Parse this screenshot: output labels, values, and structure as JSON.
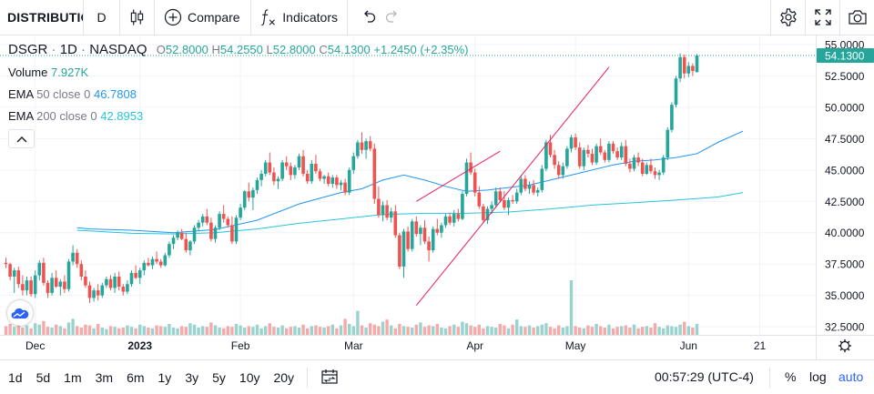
{
  "toolbar": {
    "symbol": "DISTRIBUTION",
    "interval": "D",
    "compare_label": "Compare",
    "indicators_label": "Indicators",
    "icons": [
      "candles-icon",
      "plus-circle-icon",
      "fx-icon",
      "undo-icon",
      "redo-icon",
      "settings-icon",
      "fullscreen-icon",
      "camera-icon"
    ]
  },
  "legend": {
    "symbol": "DSGR",
    "interval": "1D",
    "exchange": "NASDAQ",
    "o_label": "O",
    "o": "52.8000",
    "h_label": "H",
    "h": "54.2550",
    "l_label": "L",
    "l": "52.8000",
    "c_label": "C",
    "c": "54.1300",
    "change": "+1.2450 (+2.35%)",
    "volume_label": "Volume",
    "volume": "7.927K",
    "ema50_label": "EMA",
    "ema50_params": "50 close 0",
    "ema50": "46.7808",
    "ema200_label": "EMA",
    "ema200_params": "200 close 0",
    "ema200": "42.8953"
  },
  "colors": {
    "up": "#26a69a",
    "down": "#ef5350",
    "up_vol": "#9ad3cd",
    "down_vol": "#f3aaa8",
    "ema50": "#2196f3",
    "ema200": "#26c6da",
    "trend": "#e91e63",
    "grid": "#f0f3fa",
    "accent": "#2962ff"
  },
  "chart_data": {
    "type": "candlestick",
    "y_ticks": [
      "55.0000",
      "52.5000",
      "50.0000",
      "47.5000",
      "45.0000",
      "42.5000",
      "40.0000",
      "37.5000",
      "35.0000",
      "32.5000"
    ],
    "ylim": [
      32.0,
      55.8
    ],
    "last_price": "54.1300",
    "x_ticks": [
      {
        "label": "Dec",
        "i": 7,
        "bold": false
      },
      {
        "label": "2023",
        "i": 32,
        "bold": true
      },
      {
        "label": "Feb",
        "i": 56,
        "bold": false
      },
      {
        "label": "Mar",
        "i": 83,
        "bold": false
      },
      {
        "label": "Apr",
        "i": 112,
        "bold": false
      },
      {
        "label": "May",
        "i": 136,
        "bold": false
      },
      {
        "label": "Jun",
        "i": 163,
        "bold": false
      },
      {
        "label": "21",
        "i": 180,
        "bold": false
      }
    ],
    "candles": [
      [
        37.6,
        38.0,
        37.2,
        37.5
      ],
      [
        37.5,
        37.6,
        36.2,
        36.5
      ],
      [
        36.5,
        37.2,
        35.2,
        37.0
      ],
      [
        37.0,
        37.3,
        35.6,
        35.9
      ],
      [
        35.9,
        36.6,
        35.0,
        35.4
      ],
      [
        35.4,
        36.5,
        35.0,
        36.2
      ],
      [
        36.2,
        36.5,
        34.9,
        35.1
      ],
      [
        35.1,
        37.0,
        34.8,
        36.6
      ],
      [
        36.6,
        37.8,
        36.2,
        37.6
      ],
      [
        37.6,
        38.0,
        35.8,
        36.0
      ],
      [
        36.0,
        36.2,
        34.8,
        35.2
      ],
      [
        35.2,
        36.8,
        35.0,
        36.4
      ],
      [
        36.4,
        37.0,
        35.6,
        35.7
      ],
      [
        35.7,
        36.3,
        35.0,
        36.1
      ],
      [
        36.1,
        36.6,
        35.2,
        35.5
      ],
      [
        35.5,
        37.9,
        35.3,
        37.7
      ],
      [
        37.7,
        39.0,
        37.4,
        38.4
      ],
      [
        38.4,
        38.7,
        37.2,
        37.5
      ],
      [
        37.5,
        37.8,
        36.2,
        36.5
      ],
      [
        36.5,
        37.0,
        35.6,
        35.8
      ],
      [
        35.8,
        36.1,
        34.4,
        34.8
      ],
      [
        34.8,
        35.6,
        34.5,
        35.4
      ],
      [
        35.4,
        35.9,
        34.6,
        35.0
      ],
      [
        35.0,
        36.0,
        34.8,
        35.8
      ],
      [
        35.8,
        36.5,
        35.6,
        36.3
      ],
      [
        36.3,
        36.6,
        35.4,
        35.6
      ],
      [
        35.6,
        36.8,
        35.2,
        36.5
      ],
      [
        36.5,
        36.9,
        35.4,
        35.7
      ],
      [
        35.7,
        35.9,
        35.0,
        35.3
      ],
      [
        35.3,
        36.2,
        35.1,
        35.9
      ],
      [
        35.9,
        37.0,
        35.7,
        36.8
      ],
      [
        36.8,
        37.4,
        36.3,
        36.4
      ],
      [
        36.4,
        37.2,
        35.9,
        37.0
      ],
      [
        37.0,
        37.8,
        36.6,
        37.6
      ],
      [
        37.6,
        38.0,
        37.3,
        37.4
      ],
      [
        37.4,
        38.1,
        37.1,
        37.9
      ],
      [
        37.9,
        38.5,
        37.5,
        37.7
      ],
      [
        37.7,
        37.9,
        37.2,
        37.4
      ],
      [
        37.4,
        38.4,
        37.3,
        38.2
      ],
      [
        38.2,
        39.3,
        38.0,
        39.1
      ],
      [
        39.1,
        39.8,
        38.7,
        39.6
      ],
      [
        39.6,
        40.2,
        39.4,
        40.0
      ],
      [
        40.0,
        40.3,
        39.4,
        39.5
      ],
      [
        39.5,
        40.0,
        38.4,
        38.6
      ],
      [
        38.6,
        39.4,
        38.2,
        39.3
      ],
      [
        39.3,
        40.6,
        39.1,
        40.4
      ],
      [
        40.4,
        41.0,
        40.1,
        40.8
      ],
      [
        40.8,
        41.5,
        40.5,
        41.3
      ],
      [
        41.3,
        41.9,
        40.6,
        40.8
      ],
      [
        40.8,
        41.2,
        39.3,
        39.5
      ],
      [
        39.5,
        40.6,
        39.2,
        40.4
      ],
      [
        40.4,
        41.7,
        40.2,
        41.5
      ],
      [
        41.5,
        42.2,
        40.8,
        41.1
      ],
      [
        41.1,
        41.3,
        40.4,
        40.6
      ],
      [
        40.6,
        41.3,
        39.1,
        39.3
      ],
      [
        39.3,
        41.4,
        39.1,
        41.2
      ],
      [
        41.2,
        42.3,
        41.0,
        42.0
      ],
      [
        42.0,
        43.4,
        41.8,
        43.3
      ],
      [
        43.3,
        44.0,
        42.5,
        42.8
      ],
      [
        42.8,
        43.6,
        41.8,
        43.4
      ],
      [
        43.4,
        44.4,
        43.1,
        44.2
      ],
      [
        44.2,
        45.0,
        43.7,
        44.7
      ],
      [
        44.7,
        45.8,
        44.5,
        45.6
      ],
      [
        45.6,
        46.4,
        44.6,
        44.8
      ],
      [
        44.8,
        45.2,
        43.8,
        44.1
      ],
      [
        44.1,
        44.5,
        43.5,
        44.3
      ],
      [
        44.3,
        45.8,
        44.1,
        45.6
      ],
      [
        45.6,
        46.1,
        45.0,
        45.3
      ],
      [
        45.3,
        45.6,
        44.2,
        44.6
      ],
      [
        44.6,
        45.4,
        44.3,
        45.2
      ],
      [
        45.2,
        46.3,
        45.0,
        46.1
      ],
      [
        46.1,
        46.6,
        44.5,
        44.7
      ],
      [
        44.7,
        45.0,
        43.9,
        44.1
      ],
      [
        44.1,
        45.8,
        43.9,
        45.5
      ],
      [
        45.5,
        46.2,
        44.7,
        44.9
      ],
      [
        44.9,
        45.1,
        44.1,
        44.3
      ],
      [
        44.3,
        44.6,
        43.9,
        44.5
      ],
      [
        44.5,
        44.8,
        43.7,
        43.9
      ],
      [
        43.9,
        44.6,
        43.6,
        44.4
      ],
      [
        44.4,
        44.6,
        43.5,
        43.8
      ],
      [
        43.8,
        44.2,
        43.4,
        44.0
      ],
      [
        44.0,
        44.3,
        43.0,
        43.2
      ],
      [
        43.2,
        45.2,
        43.0,
        45.0
      ],
      [
        45.0,
        46.4,
        44.7,
        46.1
      ],
      [
        46.1,
        47.4,
        45.9,
        47.2
      ],
      [
        47.2,
        48.0,
        46.3,
        46.6
      ],
      [
        46.6,
        47.5,
        45.9,
        47.3
      ],
      [
        47.3,
        47.7,
        46.5,
        46.7
      ],
      [
        46.7,
        47.1,
        42.3,
        42.7
      ],
      [
        42.7,
        43.7,
        41.2,
        41.4
      ],
      [
        41.4,
        42.5,
        40.9,
        42.2
      ],
      [
        42.2,
        42.6,
        41.0,
        41.2
      ],
      [
        41.2,
        42.0,
        40.8,
        41.7
      ],
      [
        41.7,
        42.2,
        39.6,
        39.8
      ],
      [
        39.8,
        40.0,
        37.1,
        37.3
      ],
      [
        37.3,
        40.3,
        36.4,
        40.1
      ],
      [
        40.1,
        40.5,
        38.5,
        38.7
      ],
      [
        38.7,
        41.1,
        38.5,
        40.9
      ],
      [
        40.9,
        41.3,
        39.7,
        39.9
      ],
      [
        39.9,
        40.6,
        39.0,
        40.4
      ],
      [
        40.4,
        41.0,
        39.1,
        39.3
      ],
      [
        39.3,
        39.7,
        37.7,
        38.6
      ],
      [
        38.6,
        40.5,
        38.4,
        40.3
      ],
      [
        40.3,
        41.1,
        39.8,
        40.0
      ],
      [
        40.0,
        40.8,
        39.6,
        40.6
      ],
      [
        40.6,
        41.5,
        40.4,
        41.3
      ],
      [
        41.3,
        41.6,
        40.6,
        40.8
      ],
      [
        40.8,
        41.8,
        40.5,
        41.5
      ],
      [
        41.5,
        41.9,
        40.9,
        41.1
      ],
      [
        41.1,
        43.3,
        41.0,
        43.1
      ],
      [
        43.1,
        45.9,
        42.9,
        45.6
      ],
      [
        45.6,
        46.4,
        44.6,
        44.8
      ],
      [
        44.8,
        45.1,
        42.9,
        43.2
      ],
      [
        43.2,
        43.7,
        41.9,
        42.1
      ],
      [
        42.1,
        42.3,
        40.8,
        41.0
      ],
      [
        41.0,
        42.1,
        40.7,
        41.9
      ],
      [
        41.9,
        42.5,
        41.5,
        42.2
      ],
      [
        42.2,
        43.6,
        42.0,
        43.3
      ],
      [
        43.3,
        43.6,
        42.4,
        42.6
      ],
      [
        42.6,
        43.3,
        41.8,
        42.0
      ],
      [
        42.0,
        42.8,
        41.4,
        42.6
      ],
      [
        42.6,
        43.0,
        42.3,
        42.5
      ],
      [
        42.5,
        43.5,
        42.3,
        43.2
      ],
      [
        43.2,
        44.6,
        43.0,
        44.3
      ],
      [
        44.3,
        44.6,
        43.3,
        43.5
      ],
      [
        43.5,
        44.1,
        43.1,
        43.8
      ],
      [
        43.8,
        44.2,
        43.0,
        43.2
      ],
      [
        43.2,
        43.6,
        42.9,
        43.4
      ],
      [
        43.4,
        45.4,
        43.2,
        45.1
      ],
      [
        45.1,
        47.4,
        44.9,
        47.2
      ],
      [
        47.2,
        47.8,
        46.0,
        46.2
      ],
      [
        46.2,
        46.6,
        45.1,
        45.4
      ],
      [
        45.4,
        45.7,
        44.3,
        44.6
      ],
      [
        44.6,
        45.6,
        44.3,
        45.3
      ],
      [
        45.3,
        46.9,
        45.1,
        46.7
      ],
      [
        46.7,
        47.8,
        46.4,
        47.6
      ],
      [
        47.6,
        47.9,
        46.6,
        46.8
      ],
      [
        46.8,
        47.2,
        45.1,
        45.3
      ],
      [
        45.3,
        46.8,
        45.0,
        46.6
      ],
      [
        46.6,
        47.0,
        46.0,
        46.3
      ],
      [
        46.3,
        46.7,
        45.4,
        45.6
      ],
      [
        45.6,
        47.1,
        45.4,
        46.9
      ],
      [
        46.9,
        47.5,
        46.2,
        46.4
      ],
      [
        46.4,
        46.6,
        45.6,
        45.8
      ],
      [
        45.8,
        47.3,
        45.6,
        47.1
      ],
      [
        47.1,
        47.3,
        46.3,
        46.5
      ],
      [
        46.5,
        46.8,
        45.8,
        46.0
      ],
      [
        46.0,
        47.2,
        45.8,
        46.9
      ],
      [
        46.9,
        47.4,
        45.3,
        45.5
      ],
      [
        45.5,
        45.9,
        44.8,
        45.1
      ],
      [
        45.1,
        46.2,
        44.9,
        46.0
      ],
      [
        46.0,
        46.4,
        45.3,
        45.6
      ],
      [
        45.6,
        45.9,
        44.5,
        44.7
      ],
      [
        44.7,
        45.6,
        44.6,
        45.4
      ],
      [
        45.4,
        45.9,
        44.7,
        44.9
      ],
      [
        44.9,
        45.2,
        44.3,
        44.6
      ],
      [
        44.6,
        45.0,
        44.2,
        44.8
      ],
      [
        44.8,
        46.2,
        44.6,
        46.0
      ],
      [
        46.0,
        48.4,
        45.8,
        48.2
      ],
      [
        48.2,
        50.4,
        48.0,
        50.2
      ],
      [
        50.2,
        52.5,
        50.0,
        52.3
      ],
      [
        52.3,
        54.3,
        52.0,
        54.0
      ],
      [
        54.0,
        54.2,
        52.3,
        52.7
      ],
      [
        52.7,
        53.6,
        52.4,
        53.3
      ],
      [
        53.3,
        53.5,
        52.5,
        52.9
      ],
      [
        52.8,
        54.255,
        52.8,
        54.13
      ]
    ],
    "volume_pct": [
      12,
      15,
      11,
      17,
      10,
      13,
      9,
      16,
      14,
      19,
      11,
      10,
      14,
      12,
      9,
      17,
      22,
      12,
      10,
      14,
      13,
      9,
      15,
      10,
      8,
      12,
      11,
      9,
      10,
      13,
      11,
      9,
      14,
      12,
      10,
      9,
      13,
      12,
      11,
      15,
      10,
      9,
      12,
      11,
      16,
      14,
      10,
      12,
      11,
      17,
      13,
      10,
      9,
      12,
      11,
      15,
      13,
      10,
      12,
      11,
      14,
      9,
      12,
      16,
      11,
      10,
      13,
      9,
      11,
      12,
      10,
      14,
      9,
      12,
      13,
      11,
      10,
      12,
      14,
      9,
      13,
      22,
      15,
      12,
      33,
      13,
      10,
      16,
      14,
      12,
      18,
      21,
      13,
      9,
      15,
      12,
      11,
      10,
      14,
      17,
      11,
      13,
      12,
      15,
      10,
      9,
      12,
      14,
      11,
      18,
      16,
      13,
      11,
      14,
      9,
      12,
      11,
      10,
      15,
      13,
      9,
      14,
      21,
      12,
      11,
      13,
      10,
      12,
      14,
      16,
      11,
      9,
      13,
      10,
      12,
      75,
      12,
      10,
      9,
      13,
      11,
      15,
      12,
      10,
      14,
      9,
      11,
      12,
      13,
      10,
      14,
      9,
      11,
      12,
      10,
      16,
      11,
      9,
      13,
      12,
      11,
      14,
      18,
      12,
      10,
      15,
      11,
      9,
      12,
      10,
      11,
      14
    ],
    "ema50": [
      [
        17,
        40.4
      ],
      [
        20,
        40.3
      ],
      [
        30,
        40.2
      ],
      [
        40,
        40.0
      ],
      [
        50,
        40.25
      ],
      [
        60,
        41.0
      ],
      [
        70,
        42.3
      ],
      [
        80,
        43.2
      ],
      [
        85,
        43.5
      ],
      [
        90,
        44.2
      ],
      [
        95,
        44.6
      ],
      [
        100,
        44.2
      ],
      [
        105,
        43.7
      ],
      [
        110,
        43.3
      ],
      [
        115,
        43.4
      ],
      [
        120,
        43.6
      ],
      [
        125,
        43.8
      ],
      [
        130,
        44.2
      ],
      [
        135,
        44.6
      ],
      [
        140,
        45.0
      ],
      [
        145,
        45.4
      ],
      [
        150,
        45.7
      ],
      [
        155,
        45.8
      ],
      [
        160,
        46.0
      ],
      [
        165,
        46.3
      ],
      [
        170,
        47.2
      ],
      [
        176,
        48.1
      ]
    ],
    "ema200": [
      [
        17,
        40.2
      ],
      [
        30,
        39.95
      ],
      [
        40,
        39.9
      ],
      [
        50,
        40.0
      ],
      [
        60,
        40.3
      ],
      [
        70,
        40.75
      ],
      [
        80,
        41.1
      ],
      [
        90,
        41.45
      ],
      [
        100,
        41.55
      ],
      [
        110,
        41.55
      ],
      [
        120,
        41.65
      ],
      [
        130,
        41.9
      ],
      [
        140,
        42.2
      ],
      [
        150,
        42.4
      ],
      [
        160,
        42.6
      ],
      [
        170,
        42.85
      ],
      [
        176,
        43.2
      ]
    ],
    "trendline": [
      [
        98,
        34.2
      ],
      [
        131,
        42.4
      ],
      [
        144,
        53.2
      ]
    ],
    "trendline2": [
      [
        98,
        42.5
      ],
      [
        118,
        46.5
      ]
    ]
  }
}
